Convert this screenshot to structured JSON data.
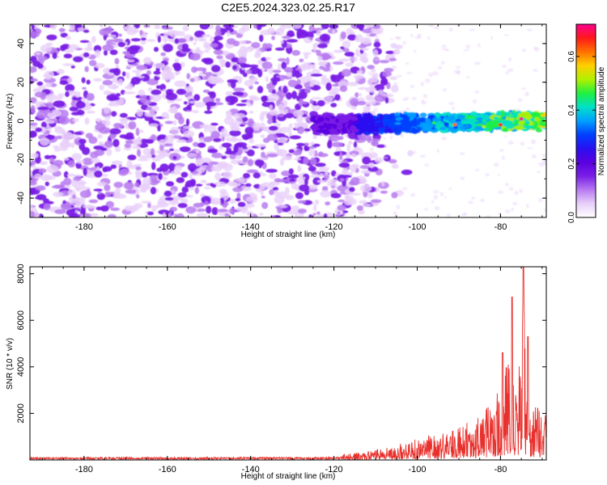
{
  "colors": {
    "snr_line": "#e8302c",
    "frame": "#000000",
    "background": "#ffffff"
  },
  "colormap": [
    "#ffffff",
    "#e8d0fa",
    "#b77af0",
    "#7a1fe6",
    "#5a00e0",
    "#2a10f0",
    "#0040ff",
    "#00a0ff",
    "#00e0c8",
    "#20f040",
    "#b0f000",
    "#ffd000",
    "#ff7000",
    "#ff1a1a",
    "#ff0090"
  ],
  "chart_data": [
    {
      "type": "heatmap",
      "title": "C2E5.2024.323.02.25.R17",
      "xlabel": "Height of straight line (km)",
      "ylabel": "Frequency (Hz)",
      "colorbar_label": "Normalized spectral amplitude",
      "xlim": [
        -193,
        -69
      ],
      "ylim": [
        -50,
        50
      ],
      "x_ticks": [
        -180,
        -160,
        -140,
        -120,
        -100,
        -80
      ],
      "y_ticks": [
        -40,
        -20,
        0,
        20,
        40
      ],
      "colorbar_range": [
        0,
        0.72
      ],
      "colorbar_ticks": [
        "0.0",
        "0.2",
        "0.4",
        "0.6"
      ],
      "colorbar_tick_values": [
        0,
        0.2,
        0.4,
        0.6
      ],
      "features": {
        "noise_region_x": [
          -193,
          -108
        ],
        "signal_band_x": [
          -125,
          -69
        ],
        "signal_band_center_y": [
          -2,
          0
        ],
        "signal_band_halfwidth_y": 5,
        "peak_amplitude": 0.72,
        "peak_location": [
          -75,
          1
        ]
      }
    },
    {
      "type": "line",
      "xlabel": "Height of straight line (km)",
      "ylabel": "SNR (10 * v/v)",
      "xlim": [
        -193,
        -69
      ],
      "ylim": [
        0,
        8300
      ],
      "x_ticks": [
        -180,
        -160,
        -140,
        -120,
        -100,
        -80
      ],
      "y_ticks": [
        2000,
        4000,
        6000,
        8000
      ],
      "grid": false,
      "envelope_x": [
        -193,
        -120,
        -115,
        -110,
        -105,
        -100,
        -97,
        -94,
        -91,
        -88,
        -86,
        -84,
        -82,
        -80,
        -79,
        -78,
        -77,
        -76,
        -75,
        -74.5,
        -74,
        -73.5,
        -73,
        -72,
        -71,
        -70,
        -69
      ],
      "envelope_y": [
        200,
        220,
        300,
        450,
        650,
        900,
        1100,
        1250,
        1350,
        1650,
        1900,
        2100,
        2500,
        3300,
        4000,
        4600,
        4200,
        3500,
        6000,
        8300,
        4800,
        3900,
        2800,
        2300,
        2400,
        2200,
        2000
      ],
      "peaks": [
        [
          -77.2,
          7000
        ],
        [
          -74.5,
          8300
        ],
        [
          -73.4,
          5300
        ],
        [
          -79.5,
          4600
        ]
      ],
      "baseline_value": 120
    }
  ]
}
